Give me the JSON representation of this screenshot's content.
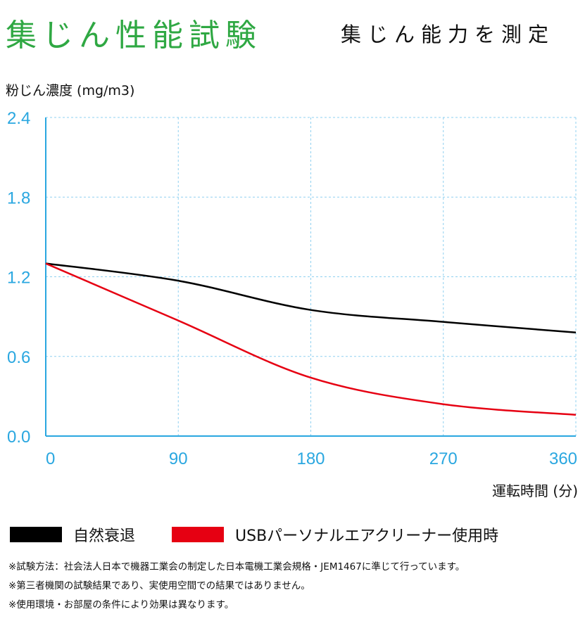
{
  "header": {
    "title": "集じん性能試験",
    "subtitle": "集じん能力を測定"
  },
  "chart_data": {
    "type": "line",
    "title": "集じん性能試験",
    "ylabel": "粉じん濃度 (mg/m3)",
    "xlabel": "運転時間 (分)",
    "x": [
      0,
      90,
      180,
      270,
      360
    ],
    "xlim": [
      0,
      360
    ],
    "ylim": [
      0,
      2.4
    ],
    "xticks": [
      "0",
      "90",
      "180",
      "270",
      "360"
    ],
    "yticks": [
      "0.0",
      "0.6",
      "1.2",
      "1.8",
      "2.4"
    ],
    "grid": true,
    "series": [
      {
        "name": "自然衰退",
        "color": "#000000",
        "values": [
          1.3,
          1.17,
          0.95,
          0.86,
          0.78
        ]
      },
      {
        "name": "USBパーソナルエアクリーナー使用時",
        "color": "#e60012",
        "values": [
          1.3,
          0.87,
          0.44,
          0.24,
          0.16
        ]
      }
    ],
    "legend_position": "bottom"
  },
  "colors": {
    "axis": "#2aa7e0",
    "grid": "#8fd0f0"
  },
  "notes": [
    "※試験方法：社会法人日本で機器工業会の制定した日本電機工業会規格・JEM1467に準じて行っています。",
    "※第三者機関の試験結果であり、実使用空間での結果ではありません。",
    "※使用環境・お部屋の条件により効果は異なります。"
  ]
}
